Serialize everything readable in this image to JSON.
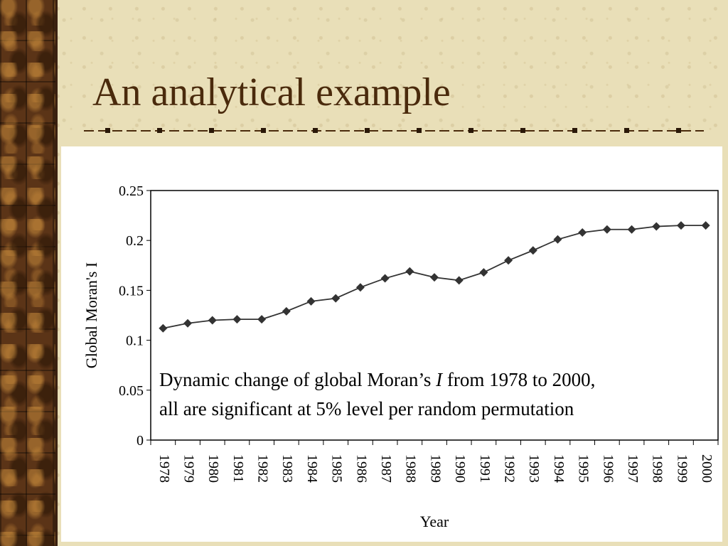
{
  "slide": {
    "title": "An analytical example",
    "caption_line1_a": "Dynamic change of global Moran’s ",
    "caption_line1_italic": "I",
    "caption_line1_b": " from 1978 to 2000,",
    "caption_line2": "all are significant at 5% level per random permutation"
  },
  "colors": {
    "title": "#4a2a0c",
    "series": "#333333",
    "band": "#5b3417"
  },
  "chart_data": {
    "type": "line",
    "xlabel": "Year",
    "ylabel": "Global Moran's I",
    "ylim": [
      0,
      0.25
    ],
    "yticks": [
      0,
      0.05,
      0.1,
      0.15,
      0.2,
      0.25
    ],
    "ytick_labels": [
      "0",
      "0.05",
      "0.1",
      "0.15",
      "0.2",
      "0.25"
    ],
    "grid": false,
    "legend": "none",
    "marker": "diamond",
    "categories": [
      "1978",
      "1979",
      "1980",
      "1981",
      "1982",
      "1983",
      "1984",
      "1985",
      "1986",
      "1987",
      "1988",
      "1989",
      "1990",
      "1991",
      "1992",
      "1993",
      "1994",
      "1995",
      "1996",
      "1997",
      "1998",
      "1999",
      "2000"
    ],
    "series": [
      {
        "values": [
          0.112,
          0.117,
          0.12,
          0.121,
          0.121,
          0.129,
          0.139,
          0.142,
          0.153,
          0.162,
          0.169,
          0.163,
          0.16,
          0.168,
          0.18,
          0.19,
          0.201,
          0.208,
          0.211,
          0.211,
          0.214,
          0.215,
          0.215
        ]
      }
    ]
  }
}
